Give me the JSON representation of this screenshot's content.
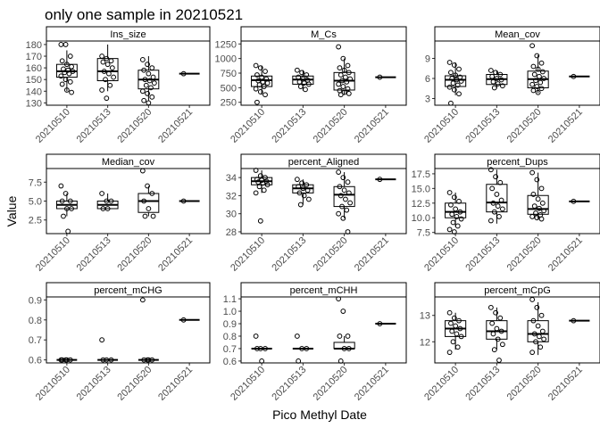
{
  "chart_data": {
    "type": "boxplot",
    "title": "only one sample in 20210521",
    "xlabel": "Pico Methyl Date",
    "ylabel": "Value",
    "categories": [
      "20210510",
      "20210513",
      "20210520",
      "20210521"
    ],
    "facets": [
      {
        "name": "Ins_size",
        "ylim": [
          128,
          183
        ],
        "yticks": [
          {
            "v": 130,
            "label": "130"
          },
          {
            "v": 140,
            "label": "140"
          },
          {
            "v": 150,
            "label": "150"
          },
          {
            "v": 160,
            "label": "160"
          },
          {
            "v": 170,
            "label": "170"
          },
          {
            "v": 180,
            "label": "180"
          }
        ],
        "boxes": [
          {
            "lower": 140,
            "q1": 152,
            "median": 157,
            "q3": 163,
            "upper": 175
          },
          {
            "lower": 140,
            "q1": 149,
            "median": 157,
            "q3": 168,
            "upper": 180
          },
          {
            "lower": 132,
            "q1": 142,
            "median": 150,
            "q3": 158,
            "upper": 170
          },
          {
            "lower": 155,
            "q1": 155,
            "median": 155,
            "q3": 155,
            "upper": 155
          }
        ],
        "points": [
          [
            180,
            180,
            170,
            166,
            163,
            161,
            159,
            158,
            157,
            156,
            155,
            153,
            150,
            148,
            146,
            141,
            139
          ],
          [
            170,
            168,
            166,
            165,
            163,
            160,
            157,
            155,
            152,
            150,
            145,
            141,
            134
          ],
          [
            167,
            163,
            160,
            158,
            155,
            152,
            150,
            149,
            147,
            145,
            143,
            140,
            138,
            135,
            132,
            130
          ],
          [
            155
          ]
        ]
      },
      {
        "name": "M_Cs",
        "ylim": [
          200,
          1300
        ],
        "yticks": [
          {
            "v": 250,
            "label": "250"
          },
          {
            "v": 500,
            "label": "500"
          },
          {
            "v": 750,
            "label": "750"
          },
          {
            "v": 1000,
            "label": "1000"
          },
          {
            "v": 1250,
            "label": "1250"
          }
        ],
        "boxes": [
          {
            "lower": 380,
            "q1": 520,
            "median": 630,
            "q3": 700,
            "upper": 880
          },
          {
            "lower": 450,
            "q1": 560,
            "median": 640,
            "q3": 700,
            "upper": 800
          },
          {
            "lower": 380,
            "q1": 460,
            "median": 620,
            "q3": 760,
            "upper": 1000
          },
          {
            "lower": 680,
            "q1": 680,
            "median": 680,
            "q3": 680,
            "upper": 680
          }
        ],
        "points": [
          [
            880,
            840,
            780,
            720,
            680,
            650,
            620,
            600,
            580,
            550,
            520,
            480,
            430,
            380,
            250
          ],
          [
            800,
            760,
            720,
            680,
            650,
            630,
            600,
            580,
            560,
            520,
            470
          ],
          [
            1200,
            1000,
            880,
            840,
            800,
            760,
            720,
            680,
            650,
            620,
            600,
            560,
            520,
            480,
            450,
            420,
            400,
            380
          ],
          [
            680
          ]
        ]
      },
      {
        "name": "Mean_cov",
        "ylim": [
          2.0,
          11.6
        ],
        "yticks": [
          {
            "v": 3,
            "label": "3"
          },
          {
            "v": 6,
            "label": "6"
          },
          {
            "v": 9,
            "label": "9"
          }
        ],
        "boxes": [
          {
            "lower": 3.5,
            "q1": 4.8,
            "median": 5.8,
            "q3": 6.4,
            "upper": 8.4
          },
          {
            "lower": 4.5,
            "q1": 5.1,
            "median": 5.9,
            "q3": 6.6,
            "upper": 7.2
          },
          {
            "lower": 3.8,
            "q1": 4.6,
            "median": 5.9,
            "q3": 7.1,
            "upper": 9.5
          },
          {
            "lower": 6.3,
            "q1": 6.3,
            "median": 6.3,
            "q3": 6.3,
            "upper": 6.3
          }
        ],
        "points": [
          [
            8.4,
            8.0,
            7.4,
            6.9,
            6.5,
            6.2,
            6.0,
            5.8,
            5.6,
            5.3,
            5.0,
            4.7,
            4.3,
            3.7,
            2.3
          ],
          [
            7.2,
            6.9,
            6.6,
            6.3,
            6.0,
            5.8,
            5.5,
            5.2,
            4.9,
            4.6
          ],
          [
            10.9,
            9.4,
            8.3,
            7.8,
            7.4,
            7.0,
            6.6,
            6.3,
            6.0,
            5.7,
            5.4,
            5.1,
            4.8,
            4.5,
            4.2,
            3.9
          ],
          [
            6.3
          ]
        ]
      },
      {
        "name": "Median_cov",
        "ylim": [
          0.7,
          9.3
        ],
        "yticks": [
          {
            "v": 2.5,
            "label": "2.5"
          },
          {
            "v": 5.0,
            "label": "5.0"
          },
          {
            "v": 7.5,
            "label": "7.5"
          }
        ],
        "boxes": [
          {
            "lower": 3,
            "q1": 4,
            "median": 4.5,
            "q3": 5,
            "upper": 6
          },
          {
            "lower": 4,
            "q1": 4,
            "median": 4.5,
            "q3": 5,
            "upper": 6
          },
          {
            "lower": 3,
            "q1": 3.5,
            "median": 5,
            "q3": 6,
            "upper": 7
          },
          {
            "lower": 5,
            "q1": 5,
            "median": 5,
            "q3": 5,
            "upper": 5
          }
        ],
        "points": [
          [
            7,
            6,
            5,
            5,
            4,
            4,
            3,
            1
          ],
          [
            6,
            5,
            5,
            4,
            4
          ],
          [
            9,
            7,
            6,
            5,
            4,
            3,
            3
          ],
          [
            5
          ]
        ]
      },
      {
        "name": "percent_Aligned",
        "ylim": [
          27.8,
          35.0
        ],
        "yticks": [
          {
            "v": 28,
            "label": "28"
          },
          {
            "v": 30,
            "label": "30"
          },
          {
            "v": 32,
            "label": "32"
          },
          {
            "v": 34,
            "label": "34"
          }
        ],
        "boxes": [
          {
            "lower": 32.3,
            "q1": 33.2,
            "median": 33.6,
            "q3": 34.0,
            "upper": 34.8
          },
          {
            "lower": 31.0,
            "q1": 32.3,
            "median": 32.8,
            "q3": 33.2,
            "upper": 33.8
          },
          {
            "lower": 29.5,
            "q1": 30.8,
            "median": 32.1,
            "q3": 33.0,
            "upper": 34.6
          },
          {
            "lower": 33.8,
            "q1": 33.8,
            "median": 33.8,
            "q3": 33.8,
            "upper": 33.8
          }
        ],
        "points": [
          [
            34.8,
            34.2,
            34.0,
            33.8,
            33.7,
            33.6,
            33.5,
            33.4,
            33.2,
            33.0,
            32.6,
            32.3,
            29.2
          ],
          [
            33.8,
            33.4,
            33.2,
            33.0,
            32.8,
            32.6,
            32.3,
            32.0,
            31.6,
            31.0
          ],
          [
            34.6,
            34.0,
            33.5,
            33.0,
            32.6,
            32.3,
            32.0,
            31.6,
            31.2,
            30.8,
            30.4,
            30.0,
            29.5,
            28.0
          ],
          [
            33.8
          ]
        ]
      },
      {
        "name": "percent_Dups",
        "ylim": [
          7.3,
          18.4
        ],
        "yticks": [
          {
            "v": 7.5,
            "label": "7.5"
          },
          {
            "v": 10.0,
            "label": "10.0"
          },
          {
            "v": 12.5,
            "label": "12.5"
          },
          {
            "v": 15.0,
            "label": "15.0"
          },
          {
            "v": 17.5,
            "label": "17.5"
          }
        ],
        "boxes": [
          {
            "lower": 8.5,
            "q1": 10.0,
            "median": 11.0,
            "q3": 12.5,
            "upper": 14.3
          },
          {
            "lower": 9.0,
            "q1": 11.0,
            "median": 12.6,
            "q3": 15.7,
            "upper": 18.2
          },
          {
            "lower": 9.8,
            "q1": 10.6,
            "median": 11.5,
            "q3": 13.8,
            "upper": 17.7
          },
          {
            "lower": 12.8,
            "q1": 12.8,
            "median": 12.8,
            "q3": 12.8,
            "upper": 12.8
          }
        ],
        "points": [
          [
            14.3,
            13.5,
            12.8,
            12.2,
            11.5,
            11.0,
            10.6,
            10.2,
            9.8,
            9.2,
            8.6,
            8.0,
            7.6
          ],
          [
            18.2,
            17.0,
            16.0,
            15.0,
            14.0,
            13.0,
            12.5,
            12.0,
            11.5,
            11.0,
            10.2,
            9.5
          ],
          [
            17.7,
            16.5,
            15.0,
            14.0,
            13.2,
            12.5,
            12.0,
            11.6,
            11.2,
            10.8,
            10.5,
            10.2,
            10.0,
            9.8
          ],
          [
            12.8
          ]
        ]
      },
      {
        "name": "percent_mCHG",
        "ylim": [
          0.585,
          0.915
        ],
        "yticks": [
          {
            "v": 0.6,
            "label": "0.6"
          },
          {
            "v": 0.7,
            "label": "0.7"
          },
          {
            "v": 0.8,
            "label": "0.8"
          },
          {
            "v": 0.9,
            "label": "0.9"
          }
        ],
        "boxes": [
          {
            "lower": 0.6,
            "q1": 0.6,
            "median": 0.6,
            "q3": 0.6,
            "upper": 0.6
          },
          {
            "lower": 0.6,
            "q1": 0.6,
            "median": 0.6,
            "q3": 0.6,
            "upper": 0.6
          },
          {
            "lower": 0.6,
            "q1": 0.6,
            "median": 0.6,
            "q3": 0.6,
            "upper": 0.6
          },
          {
            "lower": 0.8,
            "q1": 0.8,
            "median": 0.8,
            "q3": 0.8,
            "upper": 0.8
          }
        ],
        "points": [
          [
            0.6,
            0.6,
            0.6,
            0.6,
            0.6
          ],
          [
            0.7,
            0.6,
            0.6,
            0.6
          ],
          [
            0.9,
            0.6,
            0.6,
            0.6,
            0.6
          ],
          [
            0.8
          ]
        ]
      },
      {
        "name": "percent_mCHH",
        "ylim": [
          0.585,
          1.115
        ],
        "yticks": [
          {
            "v": 0.6,
            "label": "0.6"
          },
          {
            "v": 0.7,
            "label": "0.7"
          },
          {
            "v": 0.8,
            "label": "0.8"
          },
          {
            "v": 0.9,
            "label": "0.9"
          },
          {
            "v": 1.0,
            "label": "1.0"
          },
          {
            "v": 1.1,
            "label": "1.1"
          }
        ],
        "boxes": [
          {
            "lower": 0.7,
            "q1": 0.7,
            "median": 0.7,
            "q3": 0.7,
            "upper": 0.7
          },
          {
            "lower": 0.7,
            "q1": 0.7,
            "median": 0.7,
            "q3": 0.7,
            "upper": 0.7
          },
          {
            "lower": 0.7,
            "q1": 0.7,
            "median": 0.7,
            "q3": 0.75,
            "upper": 0.8
          },
          {
            "lower": 0.9,
            "q1": 0.9,
            "median": 0.9,
            "q3": 0.9,
            "upper": 0.9
          }
        ],
        "points": [
          [
            0.8,
            0.7,
            0.7,
            0.7,
            0.6
          ],
          [
            0.8,
            0.7,
            0.7,
            0.6
          ],
          [
            1.1,
            1.0,
            0.8,
            0.8,
            0.7,
            0.7,
            0.6
          ],
          [
            0.9
          ]
        ]
      },
      {
        "name": "percent_mCpG",
        "ylim": [
          11.2,
          13.7
        ],
        "yticks": [
          {
            "v": 12,
            "label": "12"
          },
          {
            "v": 13,
            "label": "13"
          }
        ],
        "boxes": [
          {
            "lower": 11.7,
            "q1": 12.2,
            "median": 12.5,
            "q3": 12.8,
            "upper": 13.1
          },
          {
            "lower": 11.7,
            "q1": 12.1,
            "median": 12.4,
            "q3": 12.8,
            "upper": 13.3
          },
          {
            "lower": 11.5,
            "q1": 12.0,
            "median": 12.3,
            "q3": 12.8,
            "upper": 13.5
          },
          {
            "lower": 12.8,
            "q1": 12.8,
            "median": 12.8,
            "q3": 12.8,
            "upper": 12.8
          }
        ],
        "points": [
          [
            13.1,
            12.9,
            12.8,
            12.7,
            12.6,
            12.5,
            12.4,
            12.3,
            12.2,
            12.0,
            11.8,
            11.6
          ],
          [
            13.3,
            13.1,
            12.9,
            12.7,
            12.5,
            12.4,
            12.3,
            12.1,
            11.9,
            11.7,
            11.3
          ],
          [
            13.6,
            13.3,
            13.0,
            12.8,
            12.6,
            12.4,
            12.3,
            12.2,
            12.1,
            12.0,
            11.8,
            11.6
          ],
          [
            12.8
          ]
        ]
      }
    ]
  }
}
